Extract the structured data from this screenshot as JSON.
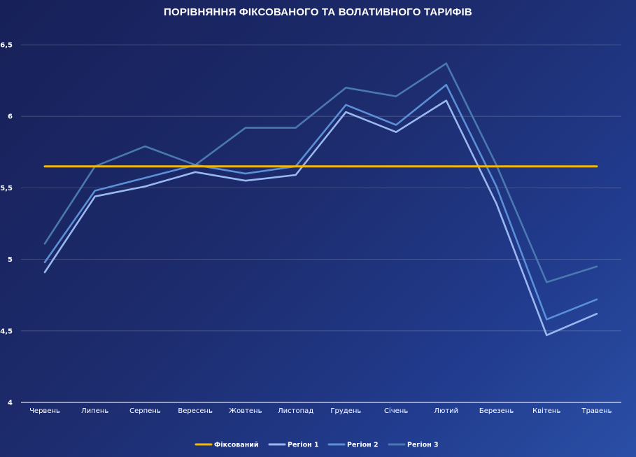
{
  "chart_data": {
    "type": "line",
    "title": "ПОРІВНЯННЯ ФІКСОВАНОГО ТА ВОЛАТИВНОГО ТАРИФІВ",
    "xlabel": "",
    "ylabel": "",
    "categories": [
      "Червень",
      "Липень",
      "Серпень",
      "Вересень",
      "Жовтень",
      "Листопад",
      "Грудень",
      "Січень",
      "Лютий",
      "Березень",
      "Квітень",
      "Травень"
    ],
    "ylim": [
      4,
      6.5
    ],
    "yticks": [
      4,
      4.5,
      5,
      5.5,
      6,
      6.5
    ],
    "ytick_labels": [
      "4",
      "4,5",
      "5",
      "5,5",
      "6",
      "6,5"
    ],
    "grid": true,
    "legend_position": "bottom",
    "series": [
      {
        "name": "Фіксований",
        "color": "#f5b800",
        "values": [
          5.65,
          5.65,
          5.65,
          5.65,
          5.65,
          5.65,
          5.65,
          5.65,
          5.65,
          5.65,
          5.65,
          5.65
        ]
      },
      {
        "name": "Регіон 1",
        "color": "#9ab8f0",
        "values": [
          4.91,
          5.44,
          5.51,
          5.61,
          5.55,
          5.59,
          6.03,
          5.89,
          6.11,
          5.39,
          4.47,
          4.62
        ]
      },
      {
        "name": "Регіон 2",
        "color": "#5b8fd6",
        "values": [
          4.98,
          5.48,
          5.57,
          5.66,
          5.6,
          5.65,
          6.08,
          5.94,
          6.22,
          5.51,
          4.58,
          4.72
        ]
      },
      {
        "name": "Регіон 3",
        "color": "#4a78b0",
        "values": [
          5.11,
          5.65,
          5.79,
          5.66,
          5.92,
          5.92,
          6.2,
          6.14,
          6.37,
          5.66,
          4.84,
          4.95
        ]
      }
    ]
  }
}
